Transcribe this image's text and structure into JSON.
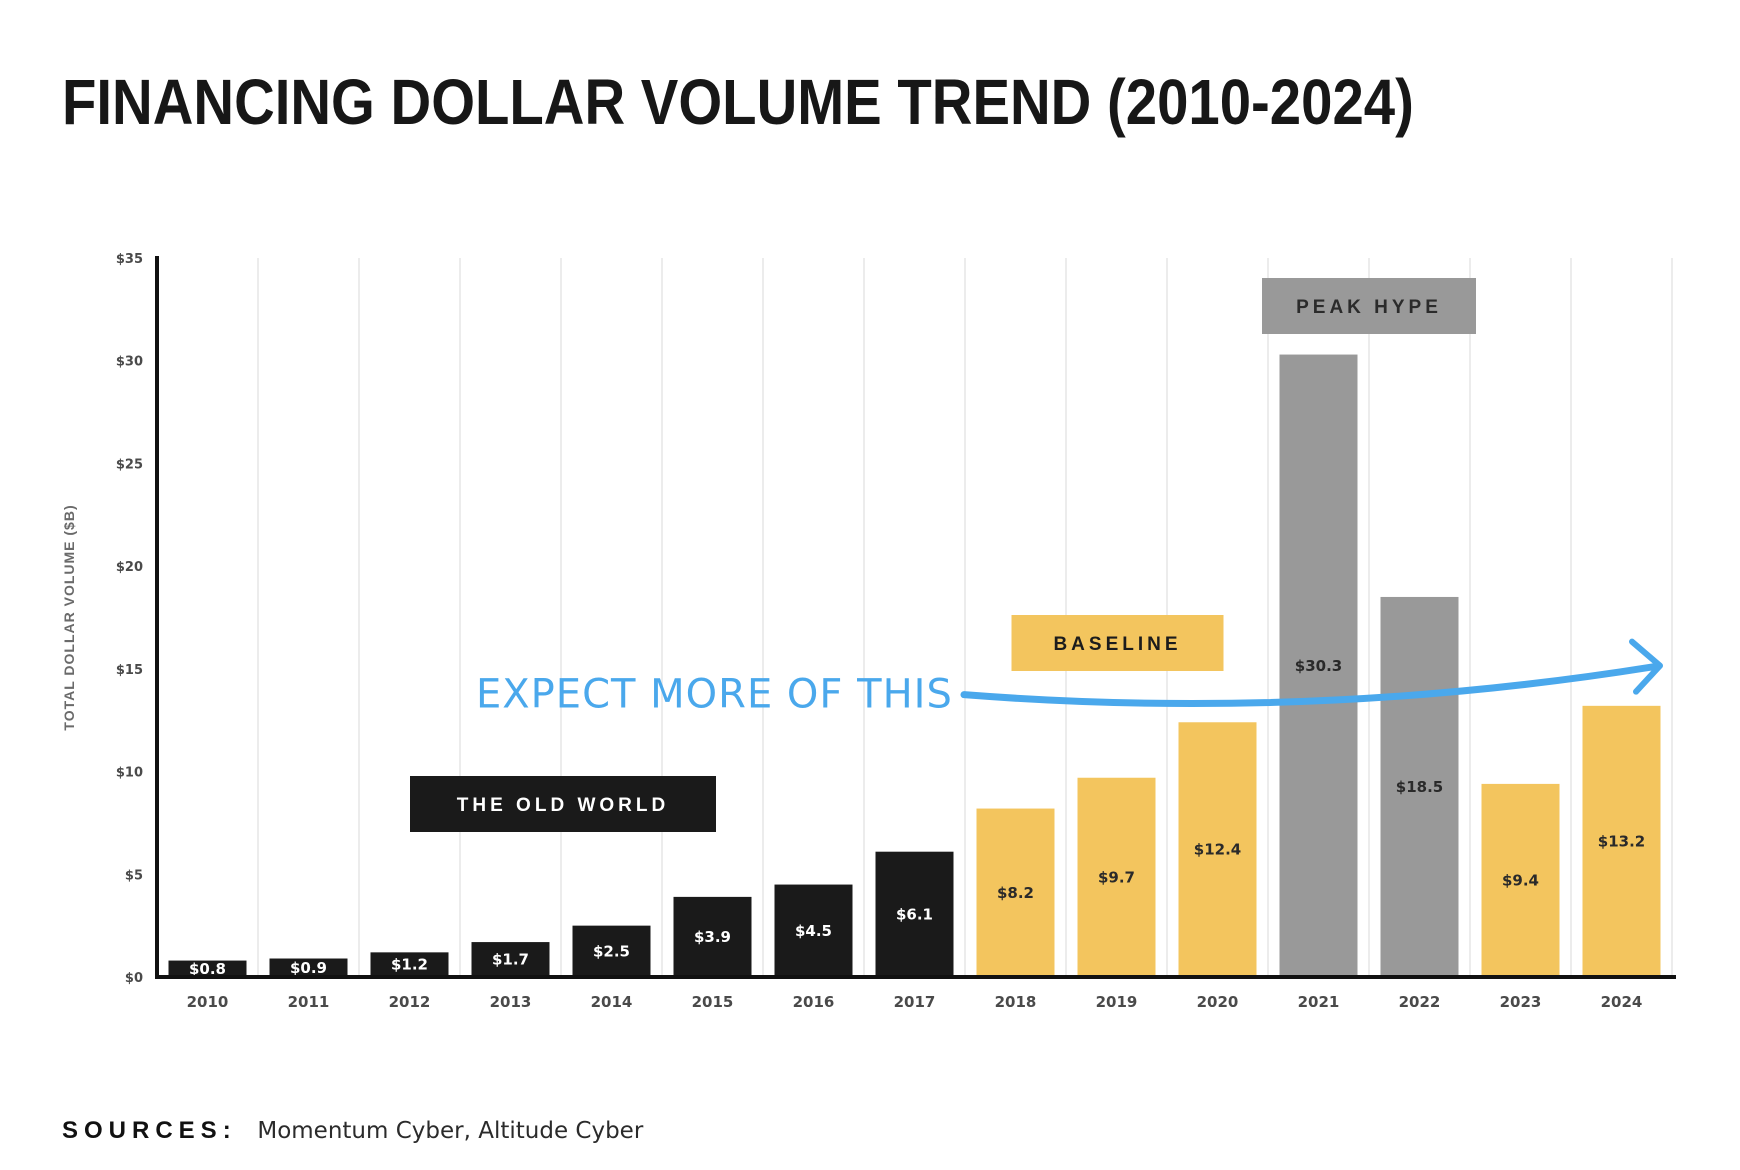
{
  "title": "FINANCING DOLLAR VOLUME TREND (2010-2024)",
  "sources": {
    "label": "SOURCES:",
    "text": "Momentum Cyber, Altitude Cyber"
  },
  "colors": {
    "black": "#1a1a1a",
    "gray": "#999999",
    "yellow": "#f3c55e",
    "arrow": "#4aa8ec",
    "grid": "#ececec",
    "baseline_box": "#f3c55e",
    "peak_box": "#999999",
    "old_world_box": "#1a1a1a"
  },
  "chart_data": {
    "type": "bar",
    "title": "FINANCING DOLLAR VOLUME TREND (2010-2024)",
    "xlabel": "",
    "ylabel": "TOTAL DOLLAR VOLUME ($B)",
    "ylim": [
      0,
      35
    ],
    "yticks": [
      0,
      5,
      10,
      15,
      20,
      25,
      30,
      35
    ],
    "ytick_labels": [
      "$0",
      "$5",
      "$10",
      "$15",
      "$20",
      "$25",
      "$30",
      "$35"
    ],
    "grid": "vertical",
    "categories": [
      "2010",
      "2011",
      "2012",
      "2013",
      "2014",
      "2015",
      "2016",
      "2017",
      "2018",
      "2019",
      "2020",
      "2021",
      "2022",
      "2023",
      "2024"
    ],
    "values": [
      0.8,
      0.9,
      1.2,
      1.7,
      2.5,
      3.9,
      4.5,
      6.1,
      8.2,
      9.7,
      12.4,
      30.3,
      18.5,
      9.4,
      13.2
    ],
    "data_labels": [
      "$0.8",
      "$0.9",
      "$1.2",
      "$1.7",
      "$2.5",
      "$3.9",
      "$4.5",
      "$6.1",
      "$8.2",
      "$9.7",
      "$12.4",
      "$30.3",
      "$18.5",
      "$9.4",
      "$13.2"
    ],
    "bar_colors": [
      "black",
      "black",
      "black",
      "black",
      "black",
      "black",
      "black",
      "black",
      "yellow",
      "yellow",
      "yellow",
      "gray",
      "gray",
      "yellow",
      "yellow"
    ],
    "annotations": [
      {
        "text": "THE OLD WORLD",
        "style": "black-box"
      },
      {
        "text": "BASELINE",
        "style": "yellow-box"
      },
      {
        "text": "PEAK HYPE",
        "style": "gray-box"
      },
      {
        "text": "EXPECT MORE OF THIS",
        "style": "blue-arrow",
        "value": 13.5
      }
    ]
  }
}
